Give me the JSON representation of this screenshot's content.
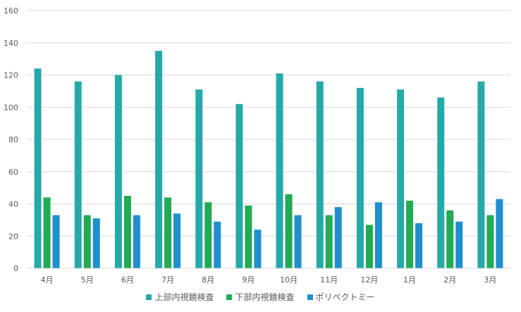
{
  "chart_data": {
    "type": "bar",
    "categories": [
      "4月",
      "5月",
      "6月",
      "7月",
      "8月",
      "9月",
      "10月",
      "11月",
      "12月",
      "1月",
      "2月",
      "3月"
    ],
    "series": [
      {
        "name": "上部内視鏡検査",
        "color": "#26A9A9",
        "values": [
          124,
          116,
          120,
          135,
          111,
          102,
          121,
          116,
          112,
          111,
          106,
          116
        ]
      },
      {
        "name": "下部内視鏡検査",
        "color": "#22AA55",
        "values": [
          44,
          33,
          45,
          44,
          41,
          39,
          46,
          33,
          27,
          42,
          36,
          33
        ]
      },
      {
        "name": "ポリペクトミー",
        "color": "#1E8FCF",
        "values": [
          33,
          31,
          33,
          34,
          29,
          24,
          33,
          38,
          41,
          28,
          29,
          43
        ]
      }
    ],
    "yticks": [
      0,
      20,
      40,
      60,
      80,
      100,
      120,
      140,
      160
    ],
    "ylim": [
      0,
      160
    ],
    "grid": true,
    "legend": "bottom"
  }
}
